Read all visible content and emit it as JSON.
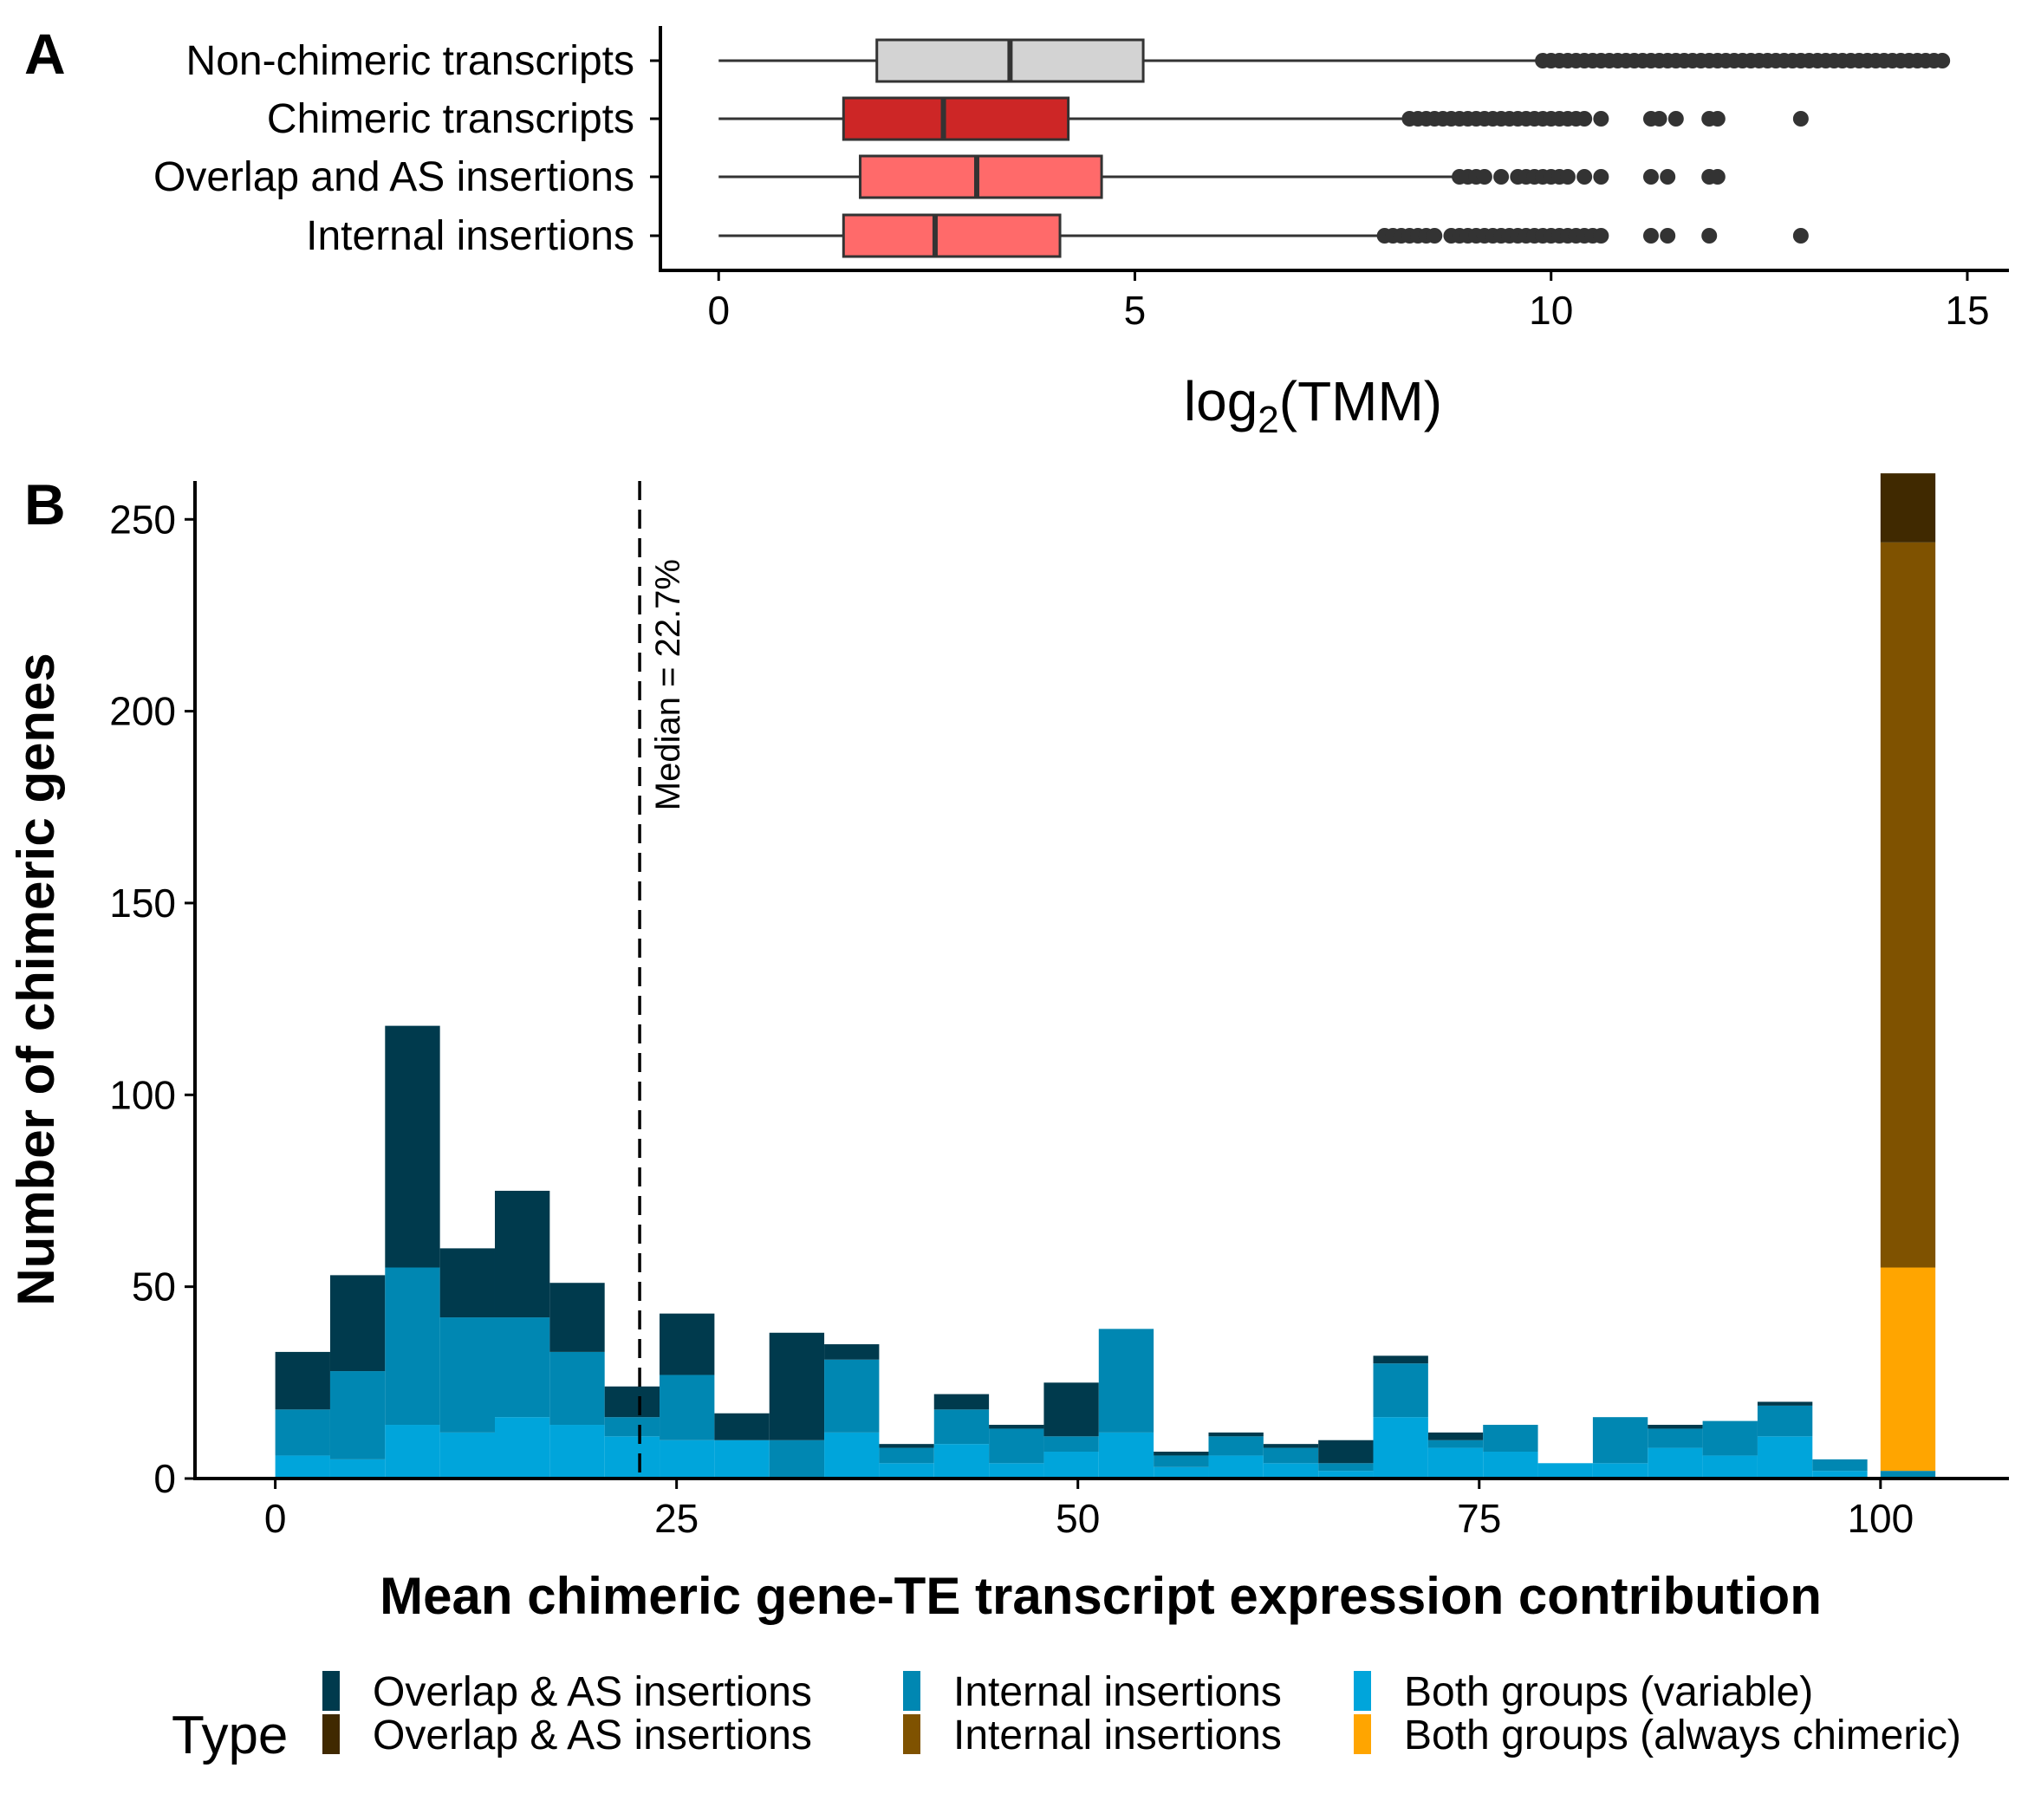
{
  "panels": {
    "a_label": "A",
    "b_label": "B"
  },
  "chart_data": [
    {
      "type": "boxplot",
      "panel": "A",
      "orientation": "horizontal",
      "xlabel_base": "log",
      "xlabel_sub": "2",
      "xlabel_rest": "(TMM)",
      "xlim": [
        -0.7,
        15.5
      ],
      "xticks": [
        0,
        5,
        10,
        15
      ],
      "categories": [
        "Non-chimeric transcripts",
        "Chimeric transcripts",
        "Overlap and AS insertions",
        "Internal insertions"
      ],
      "boxes": [
        {
          "label": "Non-chimeric transcripts",
          "min": 0,
          "q1": 1.9,
          "median": 3.5,
          "q3": 5.1,
          "whisker_high": 9.9,
          "fill": "#d3d3d3",
          "outliers": [
            9.9,
            10.0,
            10.1,
            10.2,
            10.3,
            10.4,
            10.5,
            10.6,
            10.7,
            10.8,
            10.9,
            11.0,
            11.1,
            11.2,
            11.3,
            11.4,
            11.5,
            11.6,
            11.7,
            11.8,
            11.9,
            12.0,
            12.1,
            12.2,
            12.3,
            12.4,
            12.5,
            12.6,
            12.7,
            12.8,
            12.9,
            13.0,
            13.1,
            13.2,
            13.3,
            13.4,
            13.5,
            13.6,
            13.7,
            13.8,
            13.9,
            14.0,
            14.1,
            14.2,
            14.3,
            14.4,
            14.5,
            14.6,
            14.7
          ]
        },
        {
          "label": "Chimeric transcripts",
          "min": 0,
          "q1": 1.5,
          "median": 2.7,
          "q3": 4.2,
          "whisker_high": 8.3,
          "fill": "#cd2626",
          "outliers": [
            8.3,
            8.4,
            8.5,
            8.6,
            8.7,
            8.8,
            8.9,
            9.0,
            9.1,
            9.2,
            9.3,
            9.4,
            9.5,
            9.6,
            9.7,
            9.8,
            9.9,
            10.0,
            10.1,
            10.2,
            10.3,
            10.4,
            10.6,
            11.2,
            11.3,
            11.5,
            11.9,
            12.0,
            13.0
          ]
        },
        {
          "label": "Overlap and AS insertions",
          "min": 0,
          "q1": 1.7,
          "median": 3.1,
          "q3": 4.6,
          "whisker_high": 8.9,
          "fill": "#ff6a6a",
          "outliers": [
            8.9,
            9.0,
            9.1,
            9.2,
            9.4,
            9.6,
            9.7,
            9.8,
            9.9,
            10.0,
            10.1,
            10.2,
            10.4,
            10.6,
            11.2,
            11.4,
            11.9,
            12.0
          ]
        },
        {
          "label": "Internal insertions",
          "min": 0,
          "q1": 1.5,
          "median": 2.6,
          "q3": 4.1,
          "whisker_high": 8.0,
          "fill": "#ff6a6a",
          "outliers": [
            8.0,
            8.1,
            8.2,
            8.3,
            8.4,
            8.5,
            8.6,
            8.8,
            8.9,
            9.0,
            9.1,
            9.2,
            9.3,
            9.4,
            9.5,
            9.6,
            9.7,
            9.8,
            9.9,
            10.0,
            10.1,
            10.2,
            10.3,
            10.4,
            10.5,
            10.6,
            11.2,
            11.4,
            11.9,
            13.0
          ]
        }
      ]
    },
    {
      "type": "bar",
      "panel": "B",
      "stacked": true,
      "xlabel": "Mean chimeric gene-TE transcript expression contribution",
      "ylabel": "Number of chimeric genes",
      "xlim": [
        -5,
        108
      ],
      "ylim": [
        0,
        260
      ],
      "xticks": [
        0,
        25,
        50,
        75,
        100
      ],
      "yticks": [
        0,
        50,
        100,
        150,
        200,
        250
      ],
      "bin_width": 3.42,
      "bins": [
        1.71,
        5.13,
        8.55,
        11.97,
        15.39,
        18.81,
        22.23,
        25.65,
        29.07,
        32.49,
        35.91,
        39.33,
        42.75,
        46.17,
        49.59,
        53.01,
        56.43,
        59.85,
        63.27,
        66.69,
        70.11,
        73.53,
        76.95,
        80.37,
        83.79,
        87.21,
        90.63,
        94.05,
        97.47,
        101.71
      ],
      "series": [
        {
          "name": "Both groups (variable)",
          "color": "#00a5db",
          "values": [
            6,
            5,
            14,
            12,
            16,
            14,
            11,
            10,
            10,
            0,
            12,
            4,
            9,
            4,
            7,
            12,
            3,
            6,
            4,
            2,
            16,
            8,
            7,
            4,
            4,
            8,
            6,
            11,
            2,
            0
          ]
        },
        {
          "name": "Internal insertions",
          "color": "#0087b2",
          "values": [
            12,
            23,
            41,
            30,
            26,
            19,
            5,
            17,
            0,
            10,
            19,
            4,
            9,
            9,
            4,
            27,
            3,
            5,
            4,
            2,
            14,
            2,
            7,
            0,
            12,
            5,
            9,
            8,
            3,
            2
          ]
        },
        {
          "name": "Overlap & AS insertions",
          "color": "#003a4d",
          "values": [
            15,
            25,
            63,
            18,
            33,
            18,
            8,
            16,
            7,
            28,
            4,
            1,
            4,
            1,
            14,
            0,
            1,
            1,
            1,
            6,
            2,
            2,
            0,
            0,
            0,
            1,
            0,
            1,
            0,
            0
          ]
        },
        {
          "name": "Both groups (always chimeric)",
          "color": "#ffa500",
          "values": [
            0,
            0,
            0,
            0,
            0,
            0,
            0,
            0,
            0,
            0,
            0,
            0,
            0,
            0,
            0,
            0,
            0,
            0,
            0,
            0,
            0,
            0,
            0,
            0,
            0,
            0,
            0,
            0,
            0,
            53
          ]
        },
        {
          "name": "Internal insertions",
          "color": "#7f5200",
          "values": [
            0,
            0,
            0,
            0,
            0,
            0,
            0,
            0,
            0,
            0,
            0,
            0,
            0,
            0,
            0,
            0,
            0,
            0,
            0,
            0,
            0,
            0,
            0,
            0,
            0,
            0,
            0,
            0,
            0,
            189
          ]
        },
        {
          "name": "Overlap & AS insertions",
          "color": "#402900",
          "values": [
            0,
            0,
            0,
            0,
            0,
            0,
            0,
            0,
            0,
            0,
            0,
            0,
            0,
            0,
            0,
            0,
            0,
            0,
            0,
            0,
            0,
            0,
            0,
            0,
            0,
            0,
            0,
            0,
            0,
            18
          ]
        }
      ],
      "median_line": {
        "x": 22.7,
        "label": "Median = 22.7%"
      },
      "legend": {
        "title": "Type",
        "position": "bottom",
        "rows": [
          [
            {
              "label": "Overlap & AS insertions",
              "color": "#003a4d"
            },
            {
              "label": "Internal insertions",
              "color": "#0087b2"
            },
            {
              "label": "Both groups (variable)",
              "color": "#00a5db"
            }
          ],
          [
            {
              "label": "Overlap & AS insertions",
              "color": "#402900"
            },
            {
              "label": "Internal insertions",
              "color": "#7f5200"
            },
            {
              "label": "Both groups (always chimeric)",
              "color": "#ffa500"
            }
          ]
        ]
      }
    }
  ]
}
